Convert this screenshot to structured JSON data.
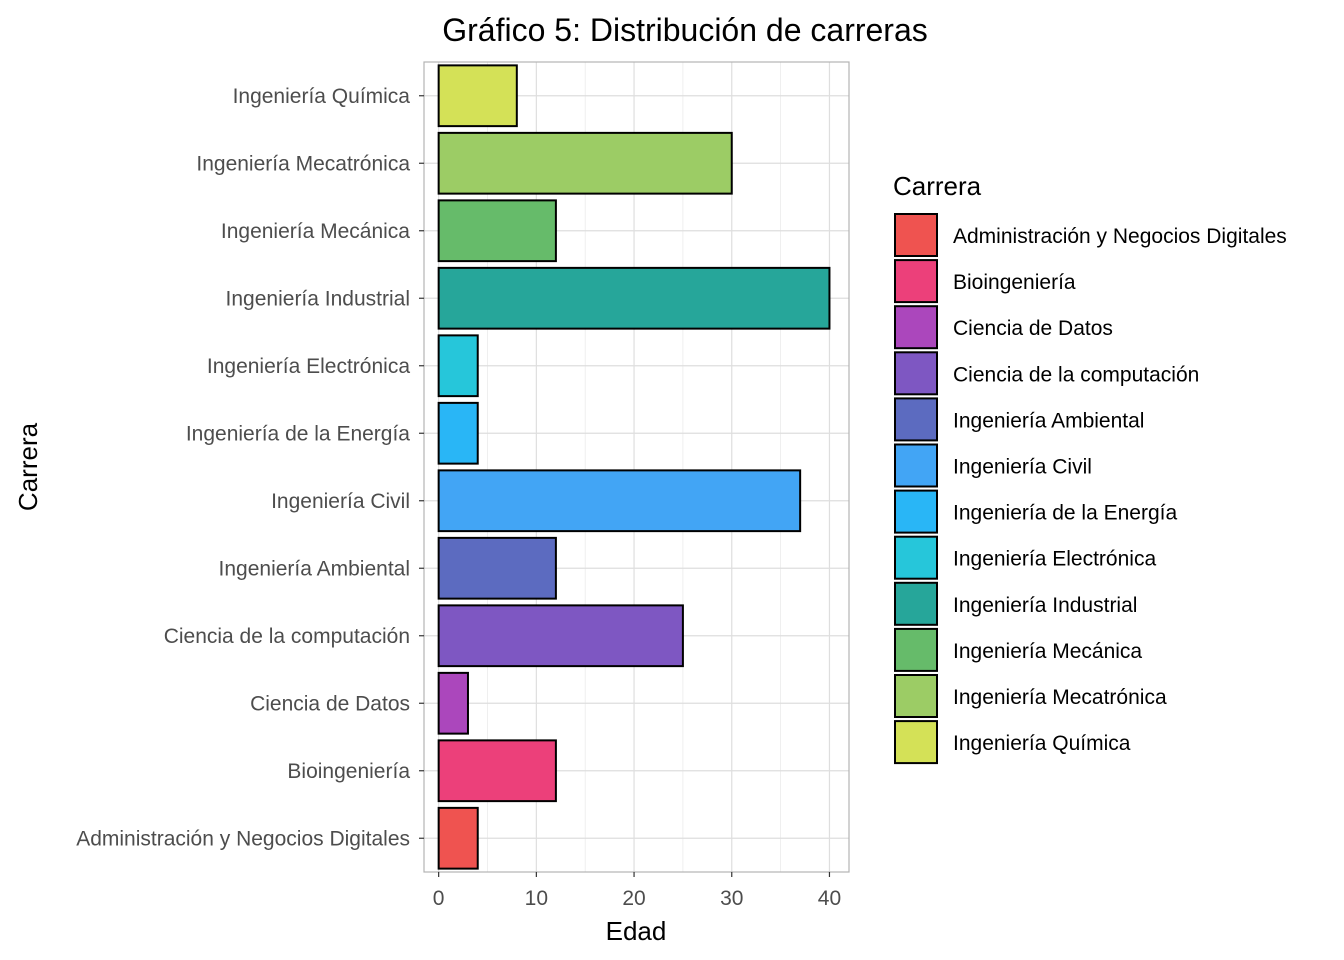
{
  "chart_data": {
    "type": "bar",
    "orientation": "horizontal",
    "title": "Gráfico 5: Distribución de carreras",
    "xlabel": "Edad",
    "ylabel": "Carrera",
    "xlim": [
      -1.5,
      42
    ],
    "x_ticks": [
      0,
      10,
      20,
      30,
      40
    ],
    "grid": true,
    "legend_title": "Carrera",
    "legend_position": "right",
    "categories": [
      "Administración y Negocios Digitales",
      "Bioingeniería",
      "Ciencia de Datos",
      "Ciencia de la computación",
      "Ingeniería Ambiental",
      "Ingeniería Civil",
      "Ingeniería de la Energía",
      "Ingeniería Electrónica",
      "Ingeniería Industrial",
      "Ingeniería Mecánica",
      "Ingeniería Mecatrónica",
      "Ingeniería Química"
    ],
    "values": [
      4,
      12,
      3,
      25,
      12,
      37,
      4,
      4,
      40,
      12,
      30,
      8
    ],
    "colors": [
      "#EF5350",
      "#EC407A",
      "#AB47BC",
      "#7E57C2",
      "#5C6BC0",
      "#42A5F5",
      "#29B6F6",
      "#26C6DA",
      "#26A69A",
      "#66BB6A",
      "#9CCC65",
      "#D4E157"
    ]
  }
}
